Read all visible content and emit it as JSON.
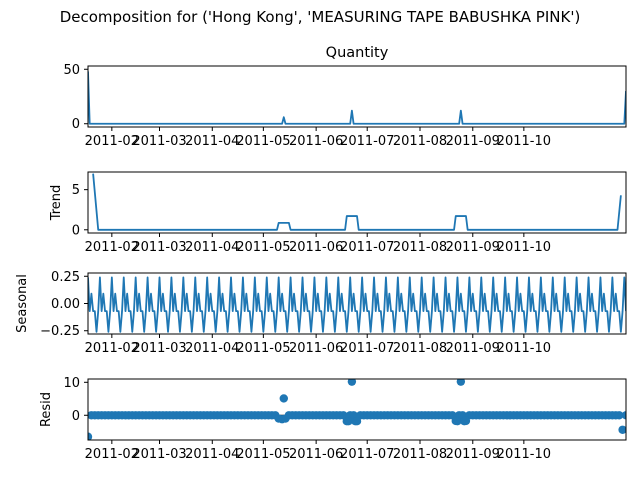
{
  "figure": {
    "suptitle": "Decomposition for ('Hong Kong', 'MEASURING TAPE BABUSHKA PINK')"
  },
  "colors": {
    "series": "#1f77b4",
    "axis": "#000000",
    "zero_line": "#000000"
  },
  "chart_data": [
    {
      "type": "line",
      "title": "Quantity",
      "ylabel": "",
      "x_range": [
        "2011-01-18",
        "2011-11-30"
      ],
      "ylim": [
        -3,
        53
      ],
      "yticks": [
        0,
        50
      ],
      "xticks": [
        "2011-02",
        "2011-03",
        "2011-04",
        "2011-05",
        "2011-06",
        "2011-07",
        "2011-08",
        "2011-09",
        "2011-10"
      ],
      "series": [
        {
          "points": [
            [
              "2011-01-18",
              48
            ],
            [
              "2011-01-19",
              0
            ],
            [
              "2011-05-12",
              0
            ],
            [
              "2011-05-13",
              6
            ],
            [
              "2011-05-14",
              0
            ],
            [
              "2011-06-21",
              0
            ],
            [
              "2011-06-22",
              12
            ],
            [
              "2011-06-23",
              0
            ],
            [
              "2011-08-24",
              0
            ],
            [
              "2011-08-25",
              12
            ],
            [
              "2011-08-26",
              0
            ],
            [
              "2011-11-29",
              0
            ],
            [
              "2011-11-30",
              30
            ]
          ]
        }
      ]
    },
    {
      "type": "line",
      "title": "",
      "ylabel": "Trend",
      "x_range": [
        "2011-01-18",
        "2011-11-30"
      ],
      "ylim": [
        -0.4,
        7.2
      ],
      "yticks": [
        0,
        5
      ],
      "xticks": [
        "2011-02",
        "2011-03",
        "2011-04",
        "2011-05",
        "2011-06",
        "2011-07",
        "2011-08",
        "2011-09",
        "2011-10"
      ],
      "series": [
        {
          "points": [
            [
              "2011-01-21",
              7
            ],
            [
              "2011-01-24",
              0
            ],
            [
              "2011-05-09",
              0
            ],
            [
              "2011-05-10",
              0.86
            ],
            [
              "2011-05-16",
              0.86
            ],
            [
              "2011-05-17",
              0
            ],
            [
              "2011-06-18",
              0
            ],
            [
              "2011-06-19",
              1.71
            ],
            [
              "2011-06-25",
              1.71
            ],
            [
              "2011-06-26",
              0
            ],
            [
              "2011-08-21",
              0
            ],
            [
              "2011-08-22",
              1.71
            ],
            [
              "2011-08-28",
              1.71
            ],
            [
              "2011-08-29",
              0
            ],
            [
              "2011-11-25",
              0
            ],
            [
              "2011-11-27",
              4.3
            ]
          ]
        }
      ]
    },
    {
      "type": "line",
      "title": "",
      "ylabel": "Seasonal",
      "x_range": [
        "2011-01-18",
        "2011-11-30"
      ],
      "ylim": [
        -0.28,
        0.28
      ],
      "yticks": [
        -0.25,
        0.0,
        0.25
      ],
      "ytick_labels": [
        "−0.25",
        "0.00",
        "0.25"
      ],
      "xticks": [
        "2011-02",
        "2011-03",
        "2011-04",
        "2011-05",
        "2011-06",
        "2011-07",
        "2011-08",
        "2011-09",
        "2011-10"
      ],
      "seasonal": {
        "start": "2011-01-18",
        "end": "2011-11-30",
        "period_days": 7,
        "pattern": [
          0.24,
          -0.07,
          0.09,
          -0.07,
          -0.07,
          -0.26,
          -0.07
        ]
      }
    },
    {
      "type": "scatter",
      "title": "",
      "ylabel": "Resid",
      "x_range": [
        "2011-01-18",
        "2011-11-30"
      ],
      "ylim": [
        -7.5,
        11
      ],
      "yticks": [
        0,
        10
      ],
      "xticks": [
        "2011-02",
        "2011-03",
        "2011-04",
        "2011-05",
        "2011-06",
        "2011-07",
        "2011-08",
        "2011-09",
        "2011-10"
      ],
      "zero_line": true,
      "residuals": {
        "start": "2011-01-18",
        "end": "2011-11-30",
        "step_days": 2,
        "baseline": 0,
        "outliers": [
          [
            "2011-01-18",
            -6.5
          ],
          [
            "2011-05-10",
            -1
          ],
          [
            "2011-05-12",
            -1.2
          ],
          [
            "2011-05-13",
            5.1
          ],
          [
            "2011-05-14",
            -1
          ],
          [
            "2011-06-19",
            -1.8
          ],
          [
            "2011-06-20",
            -1.8
          ],
          [
            "2011-06-22",
            10.2
          ],
          [
            "2011-06-24",
            -1.8
          ],
          [
            "2011-06-25",
            -1.8
          ],
          [
            "2011-08-22",
            -1.7
          ],
          [
            "2011-08-23",
            -1.8
          ],
          [
            "2011-08-25",
            10.2
          ],
          [
            "2011-08-27",
            -1.8
          ],
          [
            "2011-08-28",
            -1.7
          ],
          [
            "2011-11-28",
            -4.4
          ]
        ]
      }
    }
  ]
}
